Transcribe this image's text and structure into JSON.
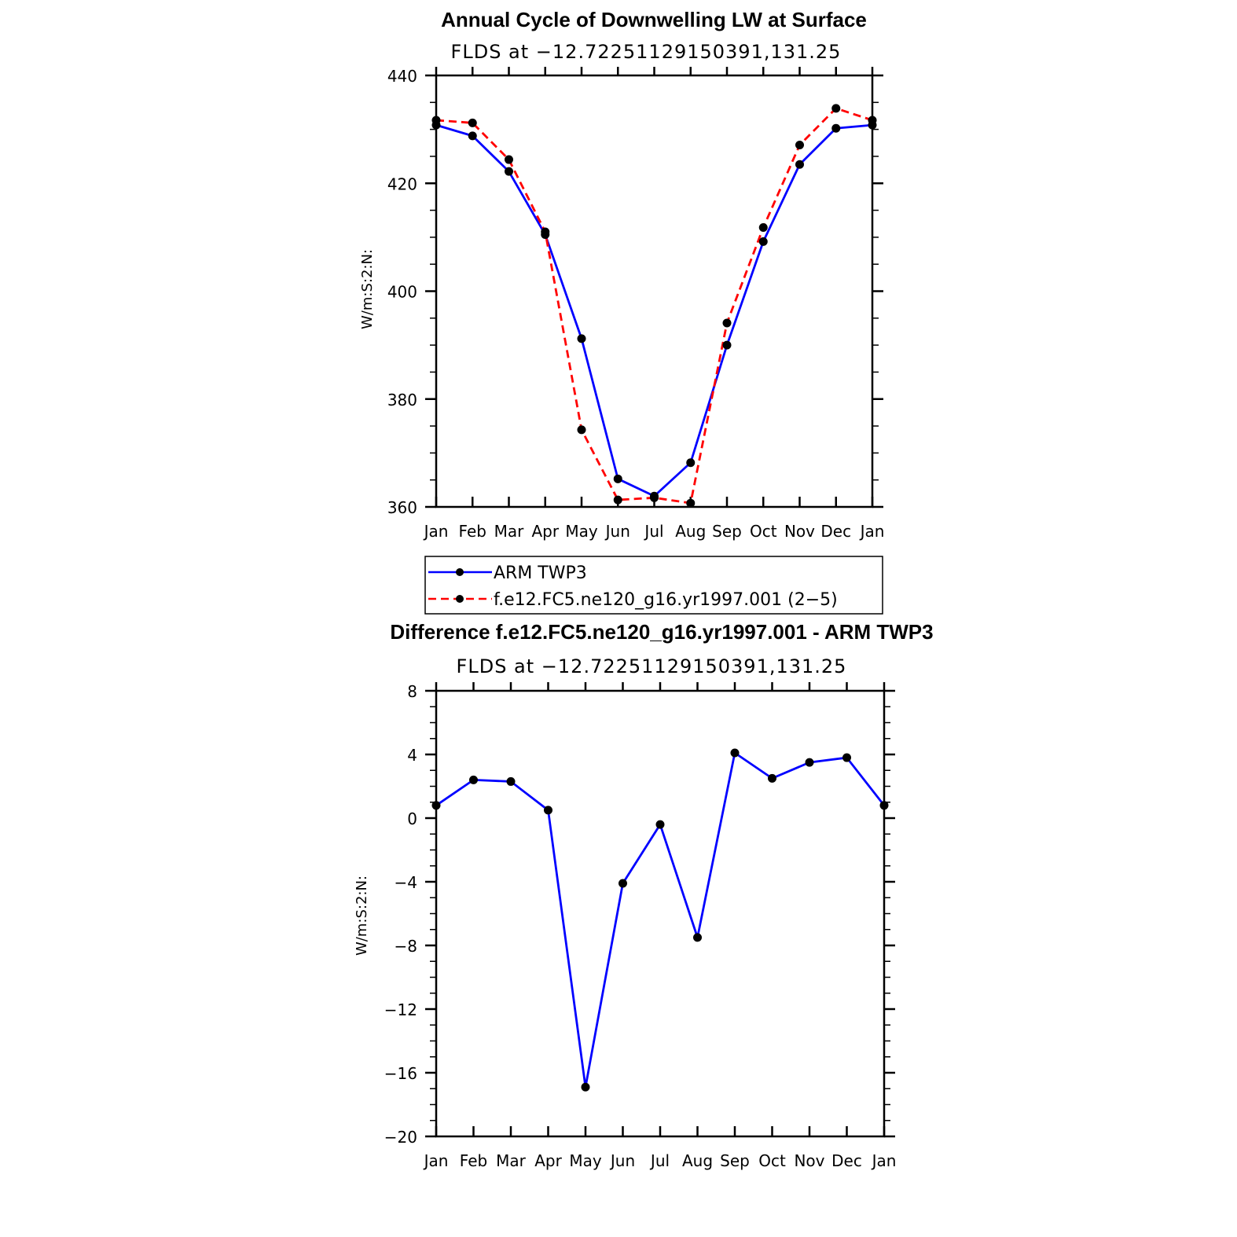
{
  "chart_data": [
    {
      "type": "line",
      "title": "Annual Cycle of Downwelling LW at Surface",
      "subtitle": "FLDS at −12.72251129150391,131.25",
      "xlabel": "",
      "ylabel": "W/m:S:2:N:",
      "categories": [
        "Jan",
        "Feb",
        "Mar",
        "Apr",
        "May",
        "Jun",
        "Jul",
        "Aug",
        "Sep",
        "Oct",
        "Nov",
        "Dec",
        "Jan"
      ],
      "ylim": [
        360,
        440
      ],
      "yticks": [
        360,
        380,
        400,
        420,
        440
      ],
      "yticklabels": [
        "360",
        "380",
        "400",
        "420",
        "440"
      ],
      "grid": false,
      "legend_placement": "below",
      "series": [
        {
          "name": "ARM TWP3",
          "color": "#0000ff",
          "style": "solid",
          "values": [
            430.8,
            428.8,
            422.2,
            410.5,
            391.2,
            365.2,
            362.0,
            368.2,
            390.0,
            409.2,
            423.5,
            430.2,
            430.8
          ]
        },
        {
          "name": "f.e12.FC5.ne120_g16.yr1997.001 (2−5)",
          "color": "#ff0000",
          "style": "dashed",
          "values": [
            431.7,
            431.2,
            424.4,
            411.0,
            374.3,
            361.3,
            361.7,
            360.7,
            394.1,
            411.8,
            427.1,
            433.9,
            431.7
          ]
        }
      ]
    },
    {
      "type": "line",
      "title": "Difference f.e12.FC5.ne120_g16.yr1997.001 - ARM TWP3",
      "subtitle": "FLDS at −12.72251129150391,131.25",
      "xlabel": "",
      "ylabel": "W/m:S:2:N:",
      "categories": [
        "Jan",
        "Feb",
        "Mar",
        "Apr",
        "May",
        "Jun",
        "Jul",
        "Aug",
        "Sep",
        "Oct",
        "Nov",
        "Dec",
        "Jan"
      ],
      "ylim": [
        -20,
        8
      ],
      "yticks": [
        -20,
        -16,
        -12,
        -8,
        -4,
        0,
        4,
        8
      ],
      "yticklabels": [
        "−20",
        "−16",
        "−12",
        "−8",
        "−4",
        "0",
        "4",
        "8"
      ],
      "grid": false,
      "series": [
        {
          "color": "#0000ff",
          "style": "solid",
          "values": [
            0.8,
            2.4,
            2.3,
            0.5,
            -16.9,
            -4.1,
            -0.4,
            -7.5,
            4.1,
            2.5,
            3.5,
            3.8,
            0.8
          ]
        }
      ]
    }
  ]
}
